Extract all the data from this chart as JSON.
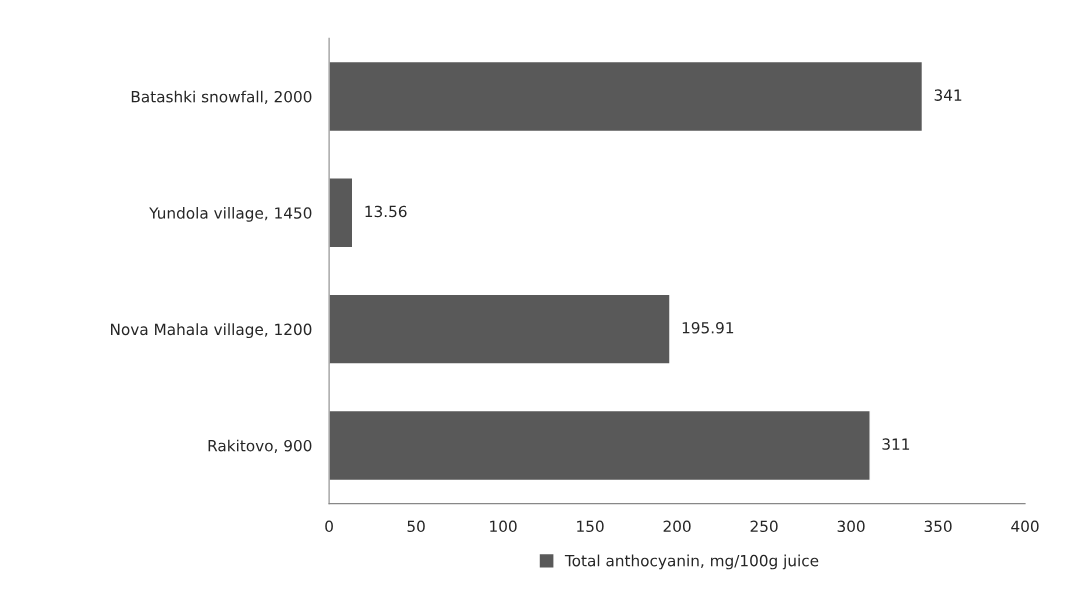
{
  "chart_data": {
    "type": "bar",
    "orientation": "horizontal",
    "categories": [
      "Batashki snowfall, 2000",
      "Yundola village, 1450",
      "Nova Mahala village, 1200",
      "Rakitovo, 900"
    ],
    "series": [
      {
        "name": "Total anthocyanin, mg/100g juice",
        "color": "#595959",
        "values": [
          341,
          13.56,
          195.91,
          311
        ]
      }
    ],
    "xlim": [
      0,
      400
    ],
    "xticks": [
      0,
      50,
      100,
      150,
      200,
      250,
      300,
      350,
      400
    ],
    "data_labels": true,
    "grid": false,
    "legend": "bottom"
  }
}
